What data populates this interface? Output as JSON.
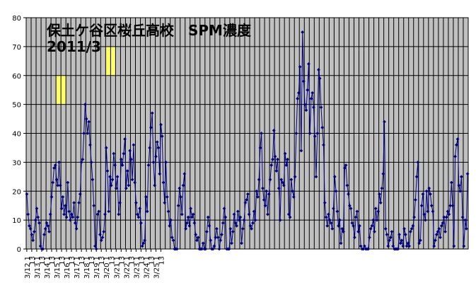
{
  "chart_data": {
    "type": "line",
    "title_line1": "保土ケ谷区桜丘高校　SPM濃度",
    "title_line2": "2011/3",
    "xlabel": "",
    "ylabel": "",
    "ylim": [
      0,
      80
    ],
    "yticks": [
      "0",
      "10",
      "20",
      "30",
      "40",
      "50",
      "60",
      "70",
      "80"
    ],
    "grid": true,
    "plot_background": "#c0c0c0",
    "line_color": "#000080",
    "highlight_color": "#ffff66",
    "x_start": "3/12 1時",
    "x_step_hours": 3,
    "xtick_labels": [
      "3/12  1",
      "13",
      "3/13  1",
      "13",
      "3/14  1",
      "13",
      "3/15  1",
      "13",
      "3/16  1",
      "13",
      "3/17  1",
      "13",
      "3/18  1",
      "13",
      "3/19  1",
      "13",
      "3/20  1",
      "13",
      "3/21  1",
      "13",
      "3/22  1",
      "13",
      "3/23  1",
      "13",
      "3/24  1",
      "13",
      "3/25  1",
      "13"
    ],
    "highlights": [
      {
        "x_from": "3/15 1時",
        "x_to": "3/16 1時",
        "y_from": 50,
        "y_to": 60
      },
      {
        "x_from": "3/20 1時",
        "x_to": "3/21 1時",
        "y_from": 60,
        "y_to": 70
      }
    ],
    "values": [
      19,
      12,
      8,
      7,
      5,
      3,
      6,
      10,
      14,
      11,
      9,
      1,
      0,
      0,
      5,
      7,
      9,
      8,
      6,
      12,
      18,
      23,
      28,
      29,
      24,
      22,
      30,
      22,
      14,
      18,
      12,
      15,
      11,
      23,
      13,
      10,
      12,
      11,
      16,
      9,
      7,
      11,
      16,
      19,
      30,
      31,
      40,
      50,
      45,
      40,
      44,
      36,
      30,
      24,
      15,
      1,
      0,
      12,
      13,
      5,
      3,
      4,
      6,
      12,
      35,
      27,
      13,
      25,
      22,
      24,
      33,
      29,
      21,
      25,
      12,
      16,
      31,
      29,
      33,
      38,
      21,
      27,
      22,
      34,
      31,
      24,
      36,
      23,
      16,
      12,
      11,
      14,
      9,
      1,
      2,
      3,
      18,
      13,
      29,
      35,
      42,
      47,
      30,
      22,
      32,
      37,
      35,
      26,
      43,
      39,
      23,
      16,
      30,
      18,
      13,
      8,
      10,
      4,
      3,
      0,
      0,
      0,
      15,
      21,
      18,
      12,
      22,
      26,
      7,
      9,
      11,
      8,
      14,
      11,
      12,
      9,
      5,
      3,
      4,
      0,
      0,
      0,
      2,
      0,
      0,
      6,
      11,
      8,
      3,
      0,
      0,
      1,
      4,
      7,
      4,
      0,
      3,
      5,
      9,
      14,
      11,
      0,
      0,
      0,
      7,
      2,
      6,
      12,
      9,
      8,
      13,
      10,
      11,
      2,
      7,
      10,
      16,
      17,
      19,
      12,
      8,
      7,
      9,
      13,
      10,
      20,
      18,
      24,
      35,
      40,
      21,
      17,
      15,
      20,
      12,
      19,
      24,
      29,
      31,
      41,
      32,
      27,
      31,
      21,
      10,
      24,
      23,
      22,
      33,
      29,
      31,
      12,
      11,
      24,
      20,
      18,
      25,
      40,
      52,
      54,
      63,
      34,
      75,
      58,
      50,
      48,
      55,
      64,
      40,
      52,
      54,
      49,
      39,
      25,
      40,
      62,
      59,
      49,
      42,
      36,
      16,
      11,
      8,
      12,
      10,
      9,
      7,
      14,
      25,
      20,
      13,
      8,
      10,
      2,
      7,
      6,
      28,
      29,
      22,
      19,
      15,
      14,
      9,
      8,
      4,
      11,
      13,
      6,
      8,
      1,
      0,
      0,
      1,
      0,
      0,
      0,
      4,
      7,
      8,
      10,
      6,
      14,
      10,
      13,
      19,
      16,
      21,
      26,
      44,
      7,
      5,
      1,
      3,
      4,
      6,
      1,
      0,
      0,
      0,
      0,
      5,
      2,
      3,
      1,
      7,
      5,
      1,
      2,
      1,
      6,
      7,
      8,
      11,
      17,
      25,
      30,
      2,
      3,
      15,
      19,
      12,
      10,
      20,
      13,
      21,
      19,
      15,
      13,
      1,
      3,
      5,
      6,
      7,
      4,
      8,
      9,
      11,
      6,
      11,
      13,
      12,
      15,
      23,
      15,
      1,
      32,
      36,
      38,
      22,
      20,
      25,
      11,
      1,
      10,
      7,
      26
    ]
  }
}
